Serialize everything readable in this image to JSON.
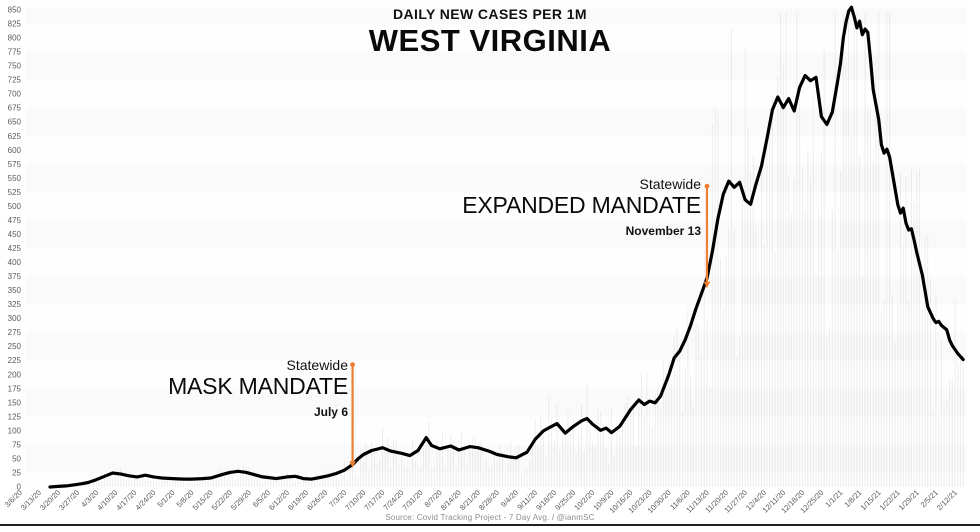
{
  "header": {
    "subtitle": "DAILY NEW CASES PER 1M",
    "title": "WEST VIRGINIA"
  },
  "source": "Source: Covid Tracking Project - 7 Day Avg. / @ianmSC",
  "annotations": {
    "mask": {
      "scope": "Statewide",
      "title": "MASK MANDATE",
      "date": "July 6",
      "day": 122,
      "arrow_top_value": 218,
      "arrow_tip_value": 46
    },
    "expanded": {
      "scope": "Statewide",
      "title": "EXPANDED MANDATE",
      "date": "November 13",
      "day": 252,
      "arrow_top_value": 536,
      "arrow_tip_value": 366
    }
  },
  "colors": {
    "line": "#000000",
    "arrow": "#ED7D31",
    "axis_text": "#595959",
    "source_text": "#8C8C8C"
  },
  "chart_data": {
    "type": "line",
    "title": "WEST VIRGINIA",
    "subtitle": "DAILY NEW CASES PER 1M",
    "xlabel": "",
    "ylabel": "",
    "ylim": [
      0,
      850
    ],
    "legend": "none",
    "grid": "subtle horizontal banding with faint vertical daily bars behind the line",
    "y_tick_labels": [
      0,
      25,
      50,
      75,
      100,
      125,
      150,
      175,
      200,
      225,
      250,
      275,
      300,
      325,
      350,
      375,
      400,
      425,
      450,
      475,
      500,
      525,
      550,
      575,
      600,
      625,
      650,
      675,
      700,
      725,
      750,
      775,
      800,
      825,
      850
    ],
    "x_tick_labels": [
      "3/6/20",
      "3/13/20",
      "3/20/20",
      "3/27/20",
      "4/3/20",
      "4/10/20",
      "4/17/20",
      "4/24/20",
      "5/1/20",
      "5/8/20",
      "5/15/20",
      "5/22/20",
      "5/29/20",
      "6/5/20",
      "6/12/20",
      "6/19/20",
      "6/26/20",
      "7/3/20",
      "7/10/20",
      "7/17/20",
      "7/24/20",
      "7/31/20",
      "8/7/20",
      "8/14/20",
      "8/21/20",
      "8/28/20",
      "9/4/20",
      "9/11/20",
      "9/18/20",
      "9/25/20",
      "10/2/20",
      "10/9/20",
      "10/16/20",
      "10/23/20",
      "10/30/20",
      "11/6/20",
      "11/13/20",
      "11/20/20",
      "11/27/20",
      "12/4/20",
      "12/11/20",
      "12/18/20",
      "12/25/20",
      "1/1/21",
      "1/8/21",
      "1/15/21",
      "1/22/21",
      "1/29/21",
      "2/5/21",
      "2/12/21"
    ],
    "x_unit": "days since 3/6/20 (one x tick per 7 days)",
    "series": [
      {
        "name": "Daily new cases per 1M (7-day average)",
        "points": [
          [
            11,
            0
          ],
          [
            14,
            1
          ],
          [
            17,
            2
          ],
          [
            20,
            4
          ],
          [
            23,
            6
          ],
          [
            25,
            8
          ],
          [
            28,
            13
          ],
          [
            31,
            19
          ],
          [
            34,
            25
          ],
          [
            37,
            23
          ],
          [
            40,
            20
          ],
          [
            43,
            18
          ],
          [
            46,
            21
          ],
          [
            49,
            18
          ],
          [
            52,
            16
          ],
          [
            56,
            15
          ],
          [
            60,
            14
          ],
          [
            63,
            14
          ],
          [
            67,
            15
          ],
          [
            70,
            16
          ],
          [
            74,
            22
          ],
          [
            77,
            26
          ],
          [
            80,
            28
          ],
          [
            83,
            26
          ],
          [
            86,
            22
          ],
          [
            89,
            18
          ],
          [
            91,
            17
          ],
          [
            94,
            15
          ],
          [
            98,
            18
          ],
          [
            101,
            19
          ],
          [
            104,
            15
          ],
          [
            107,
            14
          ],
          [
            110,
            17
          ],
          [
            113,
            20
          ],
          [
            116,
            24
          ],
          [
            119,
            30
          ],
          [
            122,
            40
          ],
          [
            124,
            50
          ],
          [
            126,
            58
          ],
          [
            129,
            65
          ],
          [
            133,
            70
          ],
          [
            136,
            64
          ],
          [
            140,
            60
          ],
          [
            143,
            56
          ],
          [
            146,
            65
          ],
          [
            149,
            88
          ],
          [
            151,
            74
          ],
          [
            154,
            68
          ],
          [
            158,
            73
          ],
          [
            161,
            66
          ],
          [
            165,
            72
          ],
          [
            168,
            70
          ],
          [
            172,
            64
          ],
          [
            175,
            58
          ],
          [
            179,
            54
          ],
          [
            182,
            52
          ],
          [
            186,
            62
          ],
          [
            189,
            85
          ],
          [
            192,
            100
          ],
          [
            195,
            108
          ],
          [
            197,
            113
          ],
          [
            200,
            96
          ],
          [
            203,
            108
          ],
          [
            206,
            118
          ],
          [
            208,
            122
          ],
          [
            210,
            112
          ],
          [
            213,
            101
          ],
          [
            215,
            105
          ],
          [
            217,
            97
          ],
          [
            220,
            108
          ],
          [
            224,
            138
          ],
          [
            227,
            155
          ],
          [
            229,
            147
          ],
          [
            231,
            153
          ],
          [
            233,
            150
          ],
          [
            235,
            162
          ],
          [
            238,
            200
          ],
          [
            240,
            230
          ],
          [
            242,
            242
          ],
          [
            244,
            262
          ],
          [
            246,
            288
          ],
          [
            248,
            318
          ],
          [
            250,
            345
          ],
          [
            252,
            372
          ],
          [
            254,
            420
          ],
          [
            256,
            478
          ],
          [
            258,
            522
          ],
          [
            260,
            545
          ],
          [
            262,
            534
          ],
          [
            264,
            543
          ],
          [
            266,
            512
          ],
          [
            268,
            504
          ],
          [
            270,
            540
          ],
          [
            272,
            572
          ],
          [
            274,
            620
          ],
          [
            276,
            672
          ],
          [
            278,
            695
          ],
          [
            280,
            676
          ],
          [
            282,
            692
          ],
          [
            284,
            670
          ],
          [
            286,
            712
          ],
          [
            288,
            733
          ],
          [
            290,
            724
          ],
          [
            292,
            730
          ],
          [
            294,
            660
          ],
          [
            296,
            646
          ],
          [
            298,
            668
          ],
          [
            300,
            725
          ],
          [
            301,
            755
          ],
          [
            302,
            800
          ],
          [
            303,
            828
          ],
          [
            304,
            848
          ],
          [
            305,
            855
          ],
          [
            306,
            838
          ],
          [
            307,
            818
          ],
          [
            308,
            830
          ],
          [
            309,
            806
          ],
          [
            310,
            816
          ],
          [
            311,
            810
          ],
          [
            312,
            762
          ],
          [
            313,
            708
          ],
          [
            315,
            655
          ],
          [
            316,
            610
          ],
          [
            317,
            595
          ],
          [
            318,
            602
          ],
          [
            319,
            588
          ],
          [
            320,
            560
          ],
          [
            322,
            503
          ],
          [
            323,
            488
          ],
          [
            324,
            497
          ],
          [
            325,
            470
          ],
          [
            326,
            458
          ],
          [
            327,
            460
          ],
          [
            328,
            440
          ],
          [
            329,
            417
          ],
          [
            331,
            378
          ],
          [
            333,
            321
          ],
          [
            335,
            300
          ],
          [
            336,
            293
          ],
          [
            337,
            295
          ],
          [
            338,
            288
          ],
          [
            340,
            280
          ],
          [
            341,
            262
          ],
          [
            342,
            252
          ],
          [
            344,
            238
          ],
          [
            346,
            227
          ]
        ]
      }
    ]
  }
}
